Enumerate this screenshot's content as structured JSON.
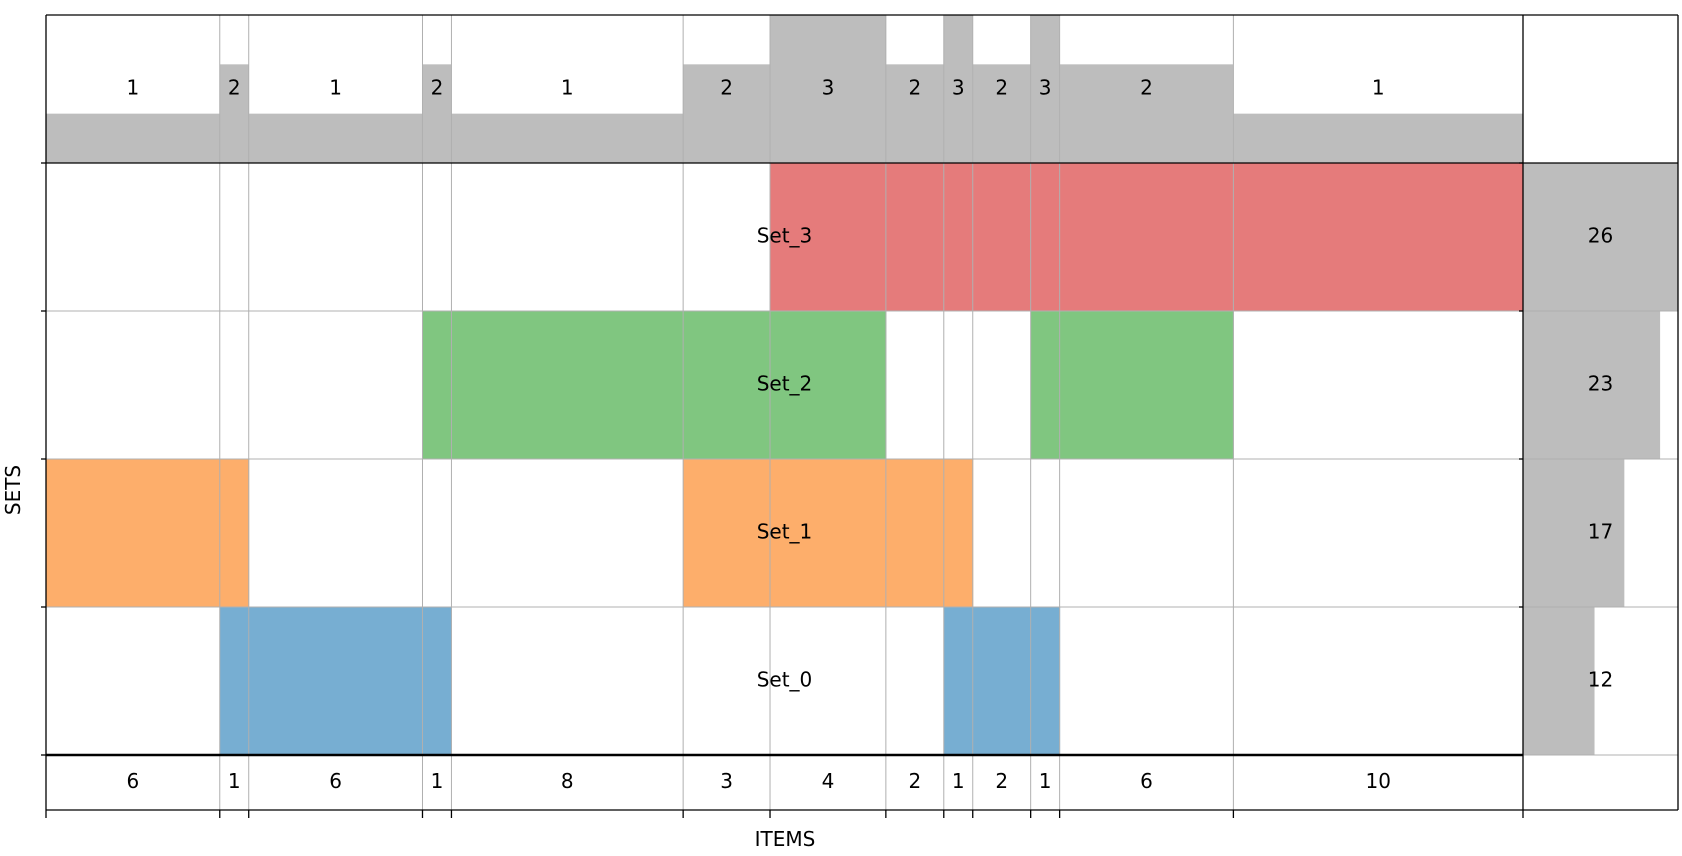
{
  "chart_data": {
    "type": "heatmap",
    "xlabel": "ITEMS",
    "ylabel": "SETS",
    "segments": [
      {
        "size": 6,
        "degree": 1,
        "sets": [
          "Set_1"
        ]
      },
      {
        "size": 1,
        "degree": 2,
        "sets": [
          "Set_0",
          "Set_1"
        ]
      },
      {
        "size": 6,
        "degree": 1,
        "sets": [
          "Set_0"
        ]
      },
      {
        "size": 1,
        "degree": 2,
        "sets": [
          "Set_0",
          "Set_2"
        ]
      },
      {
        "size": 8,
        "degree": 1,
        "sets": [
          "Set_2"
        ]
      },
      {
        "size": 3,
        "degree": 2,
        "sets": [
          "Set_1",
          "Set_2"
        ]
      },
      {
        "size": 4,
        "degree": 3,
        "sets": [
          "Set_1",
          "Set_2",
          "Set_3"
        ]
      },
      {
        "size": 2,
        "degree": 2,
        "sets": [
          "Set_1",
          "Set_3"
        ]
      },
      {
        "size": 1,
        "degree": 3,
        "sets": [
          "Set_0",
          "Set_1",
          "Set_3"
        ]
      },
      {
        "size": 2,
        "degree": 2,
        "sets": [
          "Set_0",
          "Set_3"
        ]
      },
      {
        "size": 1,
        "degree": 3,
        "sets": [
          "Set_0",
          "Set_2",
          "Set_3"
        ]
      },
      {
        "size": 6,
        "degree": 2,
        "sets": [
          "Set_2",
          "Set_3"
        ]
      },
      {
        "size": 10,
        "degree": 1,
        "sets": [
          "Set_3"
        ]
      }
    ],
    "sets": [
      {
        "name": "Set_3",
        "size": 26,
        "color": "#e57b7b"
      },
      {
        "name": "Set_2",
        "size": 23,
        "color": "#80c680"
      },
      {
        "name": "Set_1",
        "size": 17,
        "color": "#fdae6b"
      },
      {
        "name": "Set_0",
        "size": 12,
        "color": "#77aed2"
      }
    ],
    "degree_max": 3,
    "set_size_max": 26,
    "grid": true,
    "bar_color": "#bdbdbd"
  }
}
